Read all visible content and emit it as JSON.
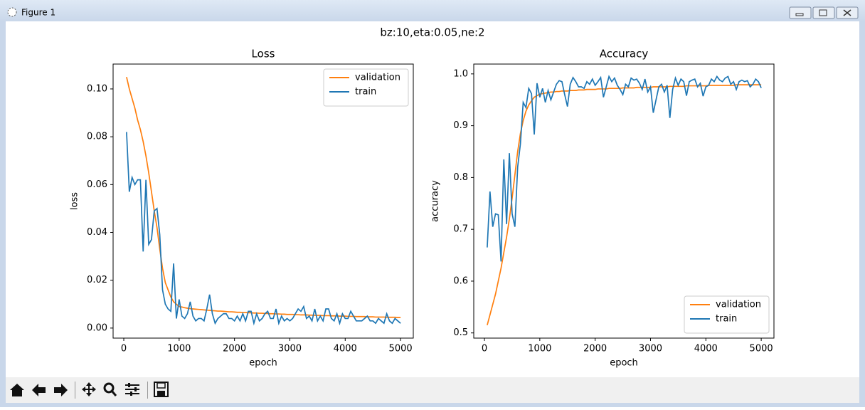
{
  "window_title": "Figure 1",
  "suptitle": "bz:10,eta:0.05,ne:2",
  "chart_data": [
    {
      "type": "line",
      "title": "Loss",
      "xlabel": "epoch",
      "ylabel": "loss",
      "x": [
        50,
        100,
        150,
        200,
        250,
        300,
        350,
        400,
        450,
        500,
        550,
        600,
        650,
        700,
        750,
        800,
        850,
        900,
        950,
        1000,
        1050,
        1100,
        1150,
        1200,
        1250,
        1300,
        1350,
        1400,
        1450,
        1500,
        1550,
        1600,
        1650,
        1700,
        1750,
        1800,
        1850,
        1900,
        1950,
        2000,
        2050,
        2100,
        2150,
        2200,
        2250,
        2300,
        2350,
        2400,
        2450,
        2500,
        2550,
        2600,
        2650,
        2700,
        2750,
        2800,
        2850,
        2900,
        2950,
        3000,
        3050,
        3100,
        3150,
        3200,
        3250,
        3300,
        3350,
        3400,
        3450,
        3500,
        3550,
        3600,
        3650,
        3700,
        3750,
        3800,
        3850,
        3900,
        3950,
        4000,
        4050,
        4100,
        4150,
        4200,
        4250,
        4300,
        4350,
        4400,
        4450,
        4500,
        4550,
        4600,
        4650,
        4700,
        4750,
        4800,
        4850,
        4900,
        4950,
        5000
      ],
      "series": [
        {
          "name": "validation",
          "color": "#ff7f0e",
          "values": [
            0.105,
            0.1,
            0.096,
            0.092,
            0.087,
            0.083,
            0.078,
            0.072,
            0.065,
            0.057,
            0.049,
            0.042,
            0.033,
            0.025,
            0.019,
            0.016,
            0.013,
            0.011,
            0.01,
            0.009,
            0.0088,
            0.0085,
            0.0083,
            0.0081,
            0.008,
            0.0079,
            0.0078,
            0.0077,
            0.0076,
            0.0075,
            0.0074,
            0.0073,
            0.0072,
            0.0071,
            0.0071,
            0.007,
            0.0069,
            0.0068,
            0.0068,
            0.0067,
            0.0066,
            0.0066,
            0.0065,
            0.0065,
            0.0064,
            0.0064,
            0.0063,
            0.0063,
            0.0062,
            0.0062,
            0.0061,
            0.0061,
            0.006,
            0.006,
            0.0059,
            0.0059,
            0.0058,
            0.0058,
            0.0057,
            0.0057,
            0.0057,
            0.0056,
            0.0056,
            0.0055,
            0.0055,
            0.0055,
            0.0054,
            0.0054,
            0.0053,
            0.0053,
            0.0053,
            0.0052,
            0.0052,
            0.0052,
            0.0051,
            0.0051,
            0.0051,
            0.005,
            0.005,
            0.005,
            0.0049,
            0.0049,
            0.0049,
            0.0048,
            0.0048,
            0.0048,
            0.0048,
            0.0047,
            0.0047,
            0.0047,
            0.0046,
            0.0046,
            0.0046,
            0.0046,
            0.0045,
            0.0045,
            0.0045,
            0.0045,
            0.0044,
            0.0044
          ]
        },
        {
          "name": "train",
          "color": "#1f77b4",
          "values": [
            0.082,
            0.057,
            0.063,
            0.06,
            0.062,
            0.062,
            0.032,
            0.062,
            0.035,
            0.037,
            0.049,
            0.05,
            0.039,
            0.016,
            0.01,
            0.008,
            0.007,
            0.027,
            0.004,
            0.012,
            0.005,
            0.004,
            0.006,
            0.011,
            0.005,
            0.003,
            0.004,
            0.004,
            0.003,
            0.008,
            0.014,
            0.006,
            0.002,
            0.004,
            0.005,
            0.006,
            0.006,
            0.004,
            0.004,
            0.003,
            0.005,
            0.003,
            0.006,
            0.003,
            0.007,
            0.007,
            0.002,
            0.006,
            0.003,
            0.004,
            0.006,
            0.007,
            0.004,
            0.004,
            0.008,
            0.002,
            0.005,
            0.003,
            0.004,
            0.003,
            0.004,
            0.006,
            0.008,
            0.007,
            0.009,
            0.004,
            0.005,
            0.003,
            0.008,
            0.003,
            0.005,
            0.003,
            0.008,
            0.008,
            0.004,
            0.003,
            0.006,
            0.002,
            0.006,
            0.004,
            0.004,
            0.007,
            0.005,
            0.003,
            0.003,
            0.003,
            0.004,
            0.005,
            0.003,
            0.003,
            0.002,
            0.004,
            0.003,
            0.002,
            0.006,
            0.003,
            0.002,
            0.004,
            0.003,
            0.002
          ]
        }
      ],
      "xlim": [
        -193,
        5230
      ],
      "ylim": [
        -0.0042,
        0.1104
      ],
      "xticks": [
        0,
        1000,
        2000,
        3000,
        4000,
        5000
      ],
      "yticks": [
        {
          "value": 0,
          "label": "0.00"
        },
        0.02,
        0.04,
        0.06,
        0.08,
        {
          "value": 0.1,
          "label": "0.10"
        }
      ],
      "legend": "upper right"
    },
    {
      "type": "line",
      "title": "Accuracy",
      "xlabel": "epoch",
      "ylabel": "accuracy",
      "x": [
        50,
        100,
        150,
        200,
        250,
        300,
        350,
        400,
        450,
        500,
        550,
        600,
        650,
        700,
        750,
        800,
        850,
        900,
        950,
        1000,
        1050,
        1100,
        1150,
        1200,
        1250,
        1300,
        1350,
        1400,
        1450,
        1500,
        1550,
        1600,
        1650,
        1700,
        1750,
        1800,
        1850,
        1900,
        1950,
        2000,
        2050,
        2100,
        2150,
        2200,
        2250,
        2300,
        2350,
        2400,
        2450,
        2500,
        2550,
        2600,
        2650,
        2700,
        2750,
        2800,
        2850,
        2900,
        2950,
        3000,
        3050,
        3100,
        3150,
        3200,
        3250,
        3300,
        3350,
        3400,
        3450,
        3500,
        3550,
        3600,
        3650,
        3700,
        3750,
        3800,
        3850,
        3900,
        3950,
        4000,
        4050,
        4100,
        4150,
        4200,
        4250,
        4300,
        4350,
        4400,
        4450,
        4500,
        4550,
        4600,
        4650,
        4700,
        4750,
        4800,
        4850,
        4900,
        4950,
        5000
      ],
      "series": [
        {
          "name": "validation",
          "color": "#ff7f0e",
          "values": [
            0.515,
            0.535,
            0.555,
            0.575,
            0.6,
            0.625,
            0.655,
            0.685,
            0.72,
            0.76,
            0.805,
            0.85,
            0.885,
            0.91,
            0.928,
            0.94,
            0.948,
            0.955,
            0.958,
            0.961,
            0.962,
            0.963,
            0.964,
            0.965,
            0.965,
            0.966,
            0.966,
            0.967,
            0.967,
            0.967,
            0.968,
            0.968,
            0.968,
            0.969,
            0.969,
            0.969,
            0.97,
            0.97,
            0.97,
            0.97,
            0.971,
            0.971,
            0.971,
            0.971,
            0.972,
            0.972,
            0.972,
            0.972,
            0.972,
            0.973,
            0.973,
            0.973,
            0.973,
            0.973,
            0.974,
            0.974,
            0.974,
            0.974,
            0.974,
            0.974,
            0.975,
            0.975,
            0.975,
            0.975,
            0.975,
            0.975,
            0.976,
            0.976,
            0.976,
            0.976,
            0.976,
            0.976,
            0.977,
            0.977,
            0.977,
            0.977,
            0.977,
            0.977,
            0.977,
            0.977,
            0.978,
            0.978,
            0.978,
            0.978,
            0.978,
            0.978,
            0.978,
            0.978,
            0.978,
            0.978,
            0.979,
            0.979,
            0.979,
            0.979,
            0.979,
            0.979,
            0.979,
            0.979,
            0.979,
            0.979
          ]
        },
        {
          "name": "train",
          "color": "#1f77b4",
          "values": [
            0.665,
            0.773,
            0.705,
            0.73,
            0.728,
            0.638,
            0.835,
            0.71,
            0.847,
            0.73,
            0.705,
            0.82,
            0.865,
            0.945,
            0.935,
            0.972,
            0.962,
            0.883,
            0.982,
            0.955,
            0.972,
            0.945,
            0.968,
            0.95,
            0.965,
            0.98,
            0.987,
            0.985,
            0.96,
            0.937,
            0.98,
            0.993,
            0.985,
            0.975,
            0.975,
            0.972,
            0.985,
            0.98,
            0.99,
            0.978,
            0.985,
            0.993,
            0.955,
            0.975,
            0.995,
            0.985,
            0.992,
            0.978,
            0.97,
            0.96,
            0.98,
            0.975,
            0.992,
            0.988,
            0.99,
            0.982,
            0.97,
            0.99,
            0.965,
            0.975,
            0.925,
            0.95,
            0.975,
            0.98,
            0.965,
            0.978,
            0.915,
            0.97,
            0.992,
            0.978,
            0.99,
            0.985,
            0.958,
            0.985,
            0.988,
            0.99,
            0.975,
            0.982,
            0.957,
            0.975,
            0.978,
            0.99,
            0.985,
            0.995,
            0.988,
            0.985,
            0.992,
            0.995,
            0.98,
            0.985,
            0.97,
            0.985,
            0.988,
            0.985,
            0.987,
            0.975,
            0.98,
            0.99,
            0.985,
            0.973
          ]
        }
      ],
      "xlim": [
        -193,
        5230
      ],
      "ylim": [
        0.49,
        1.019
      ],
      "xticks": [
        0,
        1000,
        2000,
        3000,
        4000,
        5000
      ],
      "yticks": [
        0.5,
        0.6,
        0.7,
        0.8,
        0.9,
        {
          "value": 1,
          "label": "1.0"
        }
      ],
      "legend": "lower right"
    }
  ]
}
